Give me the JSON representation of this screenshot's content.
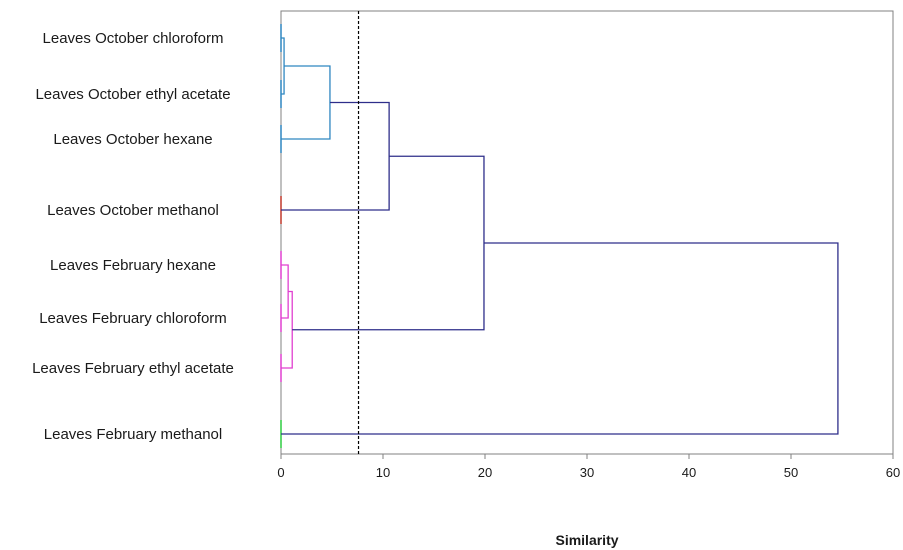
{
  "chart_data": {
    "type": "dendrogram",
    "orientation": "horizontal",
    "xlabel": "Similarity",
    "xlim": [
      0,
      60
    ],
    "xticks": [
      0,
      10,
      20,
      30,
      40,
      50,
      60
    ],
    "grid": false,
    "cutoff_line": {
      "x": 7.6,
      "style": "dashed",
      "color": "#000000"
    },
    "leaves": [
      {
        "label": "Leaves October chloroform",
        "color": "#2e86c1"
      },
      {
        "label": "Leaves October ethyl acetate",
        "color": "#2e86c1"
      },
      {
        "label": "Leaves October hexane",
        "color": "#2e86c1"
      },
      {
        "label": "Leaves October methanol",
        "color": "#c0392b"
      },
      {
        "label": "Leaves February hexane",
        "color": "#e040d0"
      },
      {
        "label": "Leaves February chloroform",
        "color": "#e040d0"
      },
      {
        "label": "Leaves February ethyl acetate",
        "color": "#e040d0"
      },
      {
        "label": "Leaves February methanol",
        "color": "#2ecc40"
      }
    ],
    "merges": [
      {
        "left": 0,
        "right": 1,
        "height": 0.3,
        "color": "#2e86c1"
      },
      {
        "left": "m0",
        "right": 2,
        "height": 4.8,
        "color": "#2e86c1"
      },
      {
        "left": 4,
        "right": 5,
        "height": 0.7,
        "color": "#e040d0"
      },
      {
        "left": "m2",
        "right": 6,
        "height": 1.1,
        "color": "#e040d0"
      },
      {
        "left": "m1",
        "right": 3,
        "height": 10.6,
        "color": "#2e2e8a"
      },
      {
        "left": "m4",
        "right": "m3",
        "height": 19.9,
        "color": "#2e2e8a"
      },
      {
        "left": "m5",
        "right": 7,
        "height": 54.6,
        "color": "#2e2e8a"
      }
    ]
  }
}
